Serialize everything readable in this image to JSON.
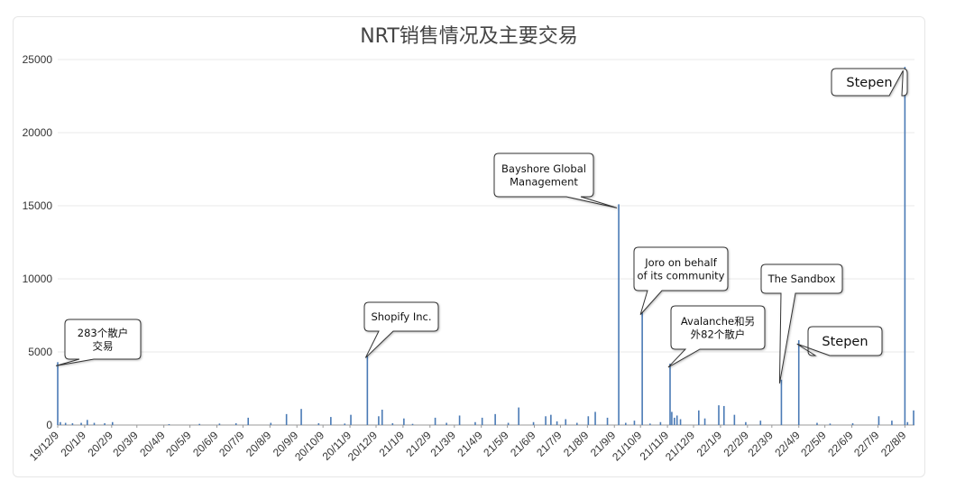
{
  "chart_data": {
    "type": "bar",
    "title": "NRT销售情况及主要交易",
    "xlabel": "",
    "ylabel": "",
    "ylim": [
      0,
      25000
    ],
    "yticks": [
      0,
      5000,
      10000,
      15000,
      20000,
      25000
    ],
    "grid": true,
    "legend": "none",
    "bar_color": "#4a7ab5",
    "date_start": "2019-12-09",
    "date_end": "2022-08-20",
    "x_tick_labels": [
      "19/12/9",
      "20/1/9",
      "20/2/9",
      "20/3/9",
      "20/4/9",
      "20/5/9",
      "20/6/9",
      "20/7/9",
      "20/8/9",
      "20/9/9",
      "20/10/9",
      "20/11/9",
      "20/12/9",
      "21/1/9",
      "21/2/9",
      "21/3/9",
      "21/4/9",
      "21/5/9",
      "21/6/9",
      "21/7/9",
      "21/8/9",
      "21/9/9",
      "21/10/9",
      "21/11/9",
      "21/12/9",
      "22/1/9",
      "22/2/9",
      "22/3/9",
      "22/4/9",
      "22/5/9",
      "22/6/9",
      "22/7/9",
      "22/8/9"
    ],
    "bars": [
      {
        "date": "2019-12-09",
        "value": 4300
      },
      {
        "date": "2019-12-12",
        "value": 200
      },
      {
        "date": "2019-12-18",
        "value": 150
      },
      {
        "date": "2019-12-26",
        "value": 120
      },
      {
        "date": "2020-01-05",
        "value": 150
      },
      {
        "date": "2020-01-12",
        "value": 350
      },
      {
        "date": "2020-01-20",
        "value": 150
      },
      {
        "date": "2020-02-01",
        "value": 120
      },
      {
        "date": "2020-02-10",
        "value": 200
      },
      {
        "date": "2020-04-15",
        "value": 60
      },
      {
        "date": "2020-05-20",
        "value": 80
      },
      {
        "date": "2020-06-12",
        "value": 100
      },
      {
        "date": "2020-07-01",
        "value": 120
      },
      {
        "date": "2020-07-15",
        "value": 500
      },
      {
        "date": "2020-08-10",
        "value": 150
      },
      {
        "date": "2020-08-28",
        "value": 750
      },
      {
        "date": "2020-09-14",
        "value": 1100
      },
      {
        "date": "2020-10-04",
        "value": 120
      },
      {
        "date": "2020-10-18",
        "value": 550
      },
      {
        "date": "2020-11-03",
        "value": 100
      },
      {
        "date": "2020-11-10",
        "value": 700
      },
      {
        "date": "2020-11-29",
        "value": 4850
      },
      {
        "date": "2020-12-12",
        "value": 600
      },
      {
        "date": "2020-12-16",
        "value": 1050
      },
      {
        "date": "2020-12-28",
        "value": 120
      },
      {
        "date": "2021-01-10",
        "value": 450
      },
      {
        "date": "2021-01-20",
        "value": 80
      },
      {
        "date": "2021-02-15",
        "value": 500
      },
      {
        "date": "2021-02-28",
        "value": 150
      },
      {
        "date": "2021-03-15",
        "value": 650
      },
      {
        "date": "2021-04-02",
        "value": 200
      },
      {
        "date": "2021-04-10",
        "value": 500
      },
      {
        "date": "2021-04-25",
        "value": 750
      },
      {
        "date": "2021-05-10",
        "value": 150
      },
      {
        "date": "2021-05-22",
        "value": 1200
      },
      {
        "date": "2021-06-08",
        "value": 200
      },
      {
        "date": "2021-06-22",
        "value": 600
      },
      {
        "date": "2021-06-28",
        "value": 700
      },
      {
        "date": "2021-07-05",
        "value": 250
      },
      {
        "date": "2021-07-15",
        "value": 400
      },
      {
        "date": "2021-07-28",
        "value": 150
      },
      {
        "date": "2021-08-10",
        "value": 600
      },
      {
        "date": "2021-08-18",
        "value": 900
      },
      {
        "date": "2021-09-01",
        "value": 500
      },
      {
        "date": "2021-09-14",
        "value": 15100
      },
      {
        "date": "2021-09-22",
        "value": 150
      },
      {
        "date": "2021-10-02",
        "value": 300
      },
      {
        "date": "2021-10-11",
        "value": 7800
      },
      {
        "date": "2021-10-20",
        "value": 100
      },
      {
        "date": "2021-11-01",
        "value": 200
      },
      {
        "date": "2021-11-12",
        "value": 4200
      },
      {
        "date": "2021-11-14",
        "value": 900
      },
      {
        "date": "2021-11-17",
        "value": 500
      },
      {
        "date": "2021-11-20",
        "value": 650
      },
      {
        "date": "2021-11-24",
        "value": 400
      },
      {
        "date": "2021-12-15",
        "value": 1000
      },
      {
        "date": "2021-12-22",
        "value": 450
      },
      {
        "date": "2022-01-07",
        "value": 1350
      },
      {
        "date": "2022-01-13",
        "value": 1300
      },
      {
        "date": "2022-01-25",
        "value": 700
      },
      {
        "date": "2022-02-07",
        "value": 200
      },
      {
        "date": "2022-02-24",
        "value": 300
      },
      {
        "date": "2022-03-20",
        "value": 3100
      },
      {
        "date": "2022-04-09",
        "value": 5800
      },
      {
        "date": "2022-04-30",
        "value": 150
      },
      {
        "date": "2022-05-15",
        "value": 100
      },
      {
        "date": "2022-06-10",
        "value": 120
      },
      {
        "date": "2022-07-10",
        "value": 600
      },
      {
        "date": "2022-07-25",
        "value": 300
      },
      {
        "date": "2022-08-09",
        "value": 24500
      },
      {
        "date": "2022-08-12",
        "value": 200
      },
      {
        "date": "2022-08-19",
        "value": 1000
      }
    ],
    "annotations": [
      {
        "text_lines": [
          "283个散户",
          "交易"
        ],
        "date": "2019-12-09",
        "value": 4300,
        "size": "small"
      },
      {
        "text_lines": [
          "Shopify Inc."
        ],
        "date": "2020-11-29",
        "value": 4850,
        "size": "small"
      },
      {
        "text_lines": [
          "Bayshore Global",
          "Management"
        ],
        "date": "2021-09-14",
        "value": 15100,
        "size": "small"
      },
      {
        "text_lines": [
          "Joro on behalf",
          "of its community"
        ],
        "date": "2021-10-11",
        "value": 7800,
        "size": "small"
      },
      {
        "text_lines": [
          "Avalanche和另",
          "外82个散户"
        ],
        "date": "2021-11-12",
        "value": 4200,
        "size": "small"
      },
      {
        "text_lines": [
          "The Sandbox"
        ],
        "date": "2022-03-20",
        "value": 3100,
        "size": "small"
      },
      {
        "text_lines": [
          "Stepen"
        ],
        "date": "2022-04-09",
        "value": 5800,
        "size": "large"
      },
      {
        "text_lines": [
          "Stepen"
        ],
        "date": "2022-08-09",
        "value": 24500,
        "size": "large"
      }
    ]
  }
}
